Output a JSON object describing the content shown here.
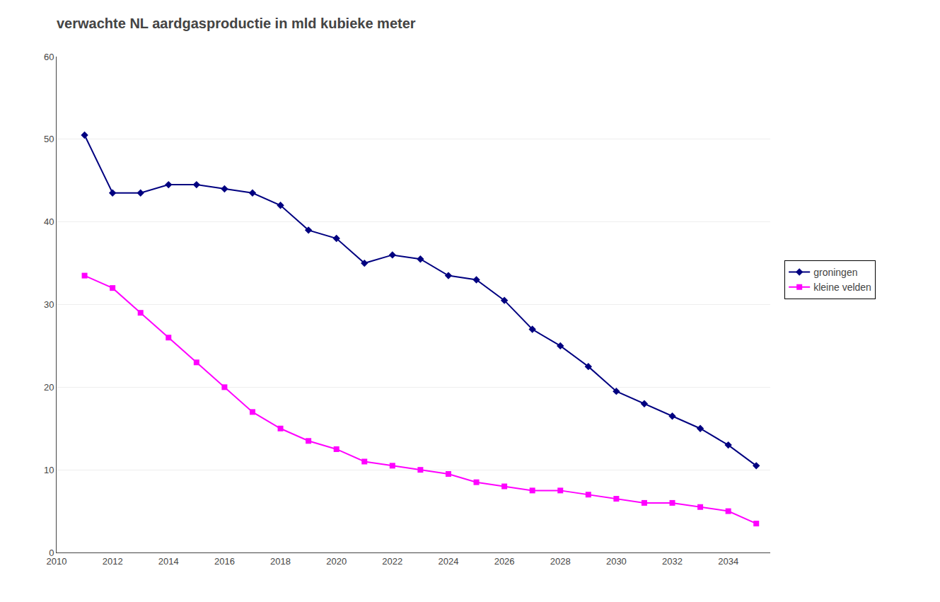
{
  "chart_data": {
    "type": "line",
    "title": "verwachte NL aardgasproductie in mld kubieke meter",
    "x": [
      2011,
      2012,
      2013,
      2014,
      2015,
      2016,
      2017,
      2018,
      2019,
      2020,
      2021,
      2022,
      2023,
      2024,
      2025,
      2026,
      2027,
      2028,
      2029,
      2030,
      2031,
      2032,
      2033,
      2034,
      2035
    ],
    "series": [
      {
        "name": "groningen",
        "color": "#000080",
        "marker": "diamond",
        "values": [
          50.5,
          43.5,
          43.5,
          44.5,
          44.5,
          44.0,
          43.5,
          42.0,
          39.0,
          38.0,
          35.0,
          36.0,
          35.5,
          33.5,
          33.0,
          30.5,
          27.0,
          25.0,
          22.5,
          19.5,
          18.0,
          16.5,
          15.0,
          13.0,
          10.5
        ]
      },
      {
        "name": "kleine velden",
        "color": "#FF00FF",
        "marker": "square",
        "values": [
          33.5,
          32.0,
          29.0,
          26.0,
          23.0,
          20.0,
          17.0,
          15.0,
          13.5,
          12.5,
          11.0,
          10.5,
          10.0,
          9.5,
          8.5,
          8.0,
          7.5,
          7.5,
          7.0,
          6.5,
          6.0,
          6.0,
          5.5,
          5.0,
          3.5
        ]
      }
    ],
    "xlim": [
      2010,
      2035.5
    ],
    "xticks": [
      2010,
      2012,
      2014,
      2016,
      2018,
      2020,
      2022,
      2024,
      2026,
      2028,
      2030,
      2032,
      2034
    ],
    "ylim": [
      0,
      60
    ],
    "yticks": [
      0,
      10,
      20,
      30,
      40,
      50,
      60
    ],
    "grid": "y",
    "legend": "right"
  }
}
